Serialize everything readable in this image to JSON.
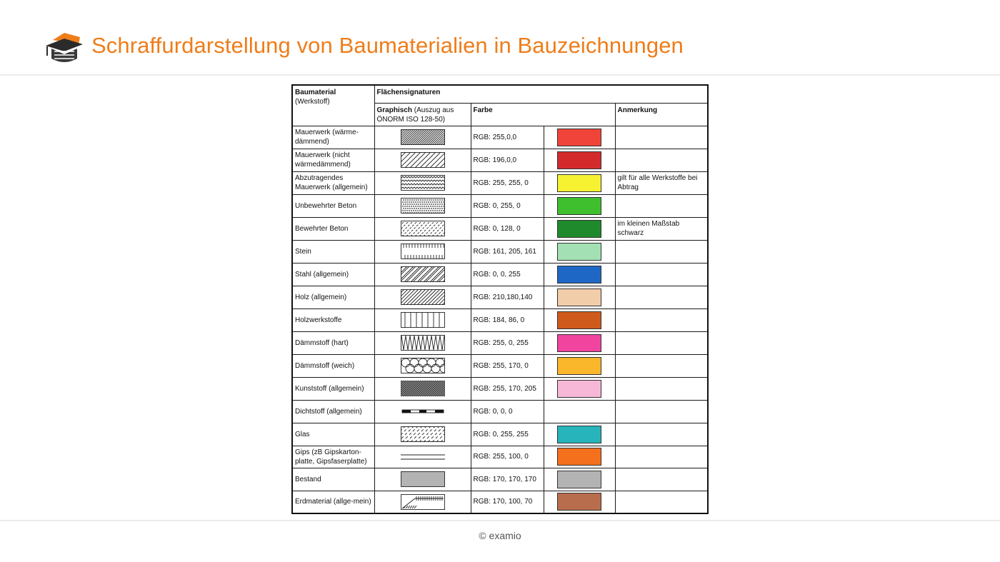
{
  "header": {
    "title": "Schraffurdarstellung von Baumaterialien in Bauzeichnungen",
    "logo_icon": "graduation-cap-logo-icon",
    "accent": "#ef7d1a"
  },
  "table": {
    "h_material": "Baumaterial",
    "h_material_sub": "(Werkstoff)",
    "h_signatures": "Flächensignaturen",
    "h_graphic": "Graphisch",
    "h_graphic_sub": "(Auszug aus",
    "h_graphic_sub2": "ÖNORM  ISO 128-50)",
    "h_color": "Farbe",
    "h_note": "Anmerkung",
    "rows": [
      {
        "material": "Mauerwerk (wärme-dämmend)",
        "pattern": "diag-dense",
        "rgb": "RGB: 255,0,0",
        "color": "#f0443a",
        "note": ""
      },
      {
        "material": "Mauerwerk (nicht wärmedämmend)",
        "pattern": "diag-wide",
        "rgb": "RGB: 196,0,0",
        "color": "#d32b2b",
        "note": ""
      },
      {
        "material": "Abzutragendes Mauerwerk (allgemein)",
        "pattern": "zigzag",
        "rgb": "RGB: 255, 255, 0",
        "color": "#f6f232",
        "note": "gilt für alle Werkstoffe bei Abtrag"
      },
      {
        "material": "Unbewehrter Beton",
        "pattern": "dots",
        "rgb": "RGB: 0, 255, 0",
        "color": "#3fbf2d",
        "note": ""
      },
      {
        "material": "Bewehrter Beton",
        "pattern": "diag-dots",
        "rgb": "RGB: 0, 128, 0",
        "color": "#1f8a2c",
        "note": "im kleinen Maßstab schwarz"
      },
      {
        "material": "Stein",
        "pattern": "ticks",
        "rgb": "RGB: 161, 205, 161",
        "color": "#a3e1b4",
        "note": ""
      },
      {
        "material": "Stahl (allgemein)",
        "pattern": "diag-double",
        "rgb": "RGB: 0, 0, 255",
        "color": "#1f67c4",
        "note": ""
      },
      {
        "material": "Holz (allgemein)",
        "pattern": "diag-fine",
        "rgb": "RGB: 210,180,140",
        "color": "#f2cda9",
        "note": ""
      },
      {
        "material": "Holzwerkstoffe",
        "pattern": "vertical",
        "rgb": "RGB: 184, 86, 0",
        "color": "#cf5a1b",
        "note": ""
      },
      {
        "material": "Dämmstoff (hart)",
        "pattern": "zigzag-big",
        "rgb": "RGB: 255, 0, 255",
        "color": "#f0449f",
        "note": ""
      },
      {
        "material": "Dämmstoff (weich)",
        "pattern": "loops",
        "rgb": "RGB: 255, 170, 0",
        "color": "#fbb72c",
        "note": ""
      },
      {
        "material": "Kunststoff (allgemein)",
        "pattern": "crosshatch",
        "rgb": "RGB: 255, 170, 205",
        "color": "#f6b8d6",
        "note": ""
      },
      {
        "material": "Dichtstoff (allgemein)",
        "pattern": "bar",
        "rgb": "RGB: 0, 0, 0",
        "color": "",
        "note": ""
      },
      {
        "material": "Glas",
        "pattern": "glass",
        "rgb": "RGB: 0, 255, 255",
        "color": "#27b5bb",
        "note": ""
      },
      {
        "material": "Gips (zB Gipskarton-platte, Gipsfaserplatte)",
        "pattern": "double-line",
        "rgb": "RGB: 255, 100, 0",
        "color": "#f5701d",
        "note": ""
      },
      {
        "material": "Bestand",
        "pattern": "grey",
        "rgb": "RGB: 170, 170, 170",
        "color": "#b3b3b3",
        "note": ""
      },
      {
        "material": "Erdmaterial (allge-mein)",
        "pattern": "earth",
        "rgb": "RGB: 170, 100, 70",
        "color": "#b86e4c",
        "note": ""
      }
    ]
  },
  "footer": {
    "text": "© examio"
  }
}
